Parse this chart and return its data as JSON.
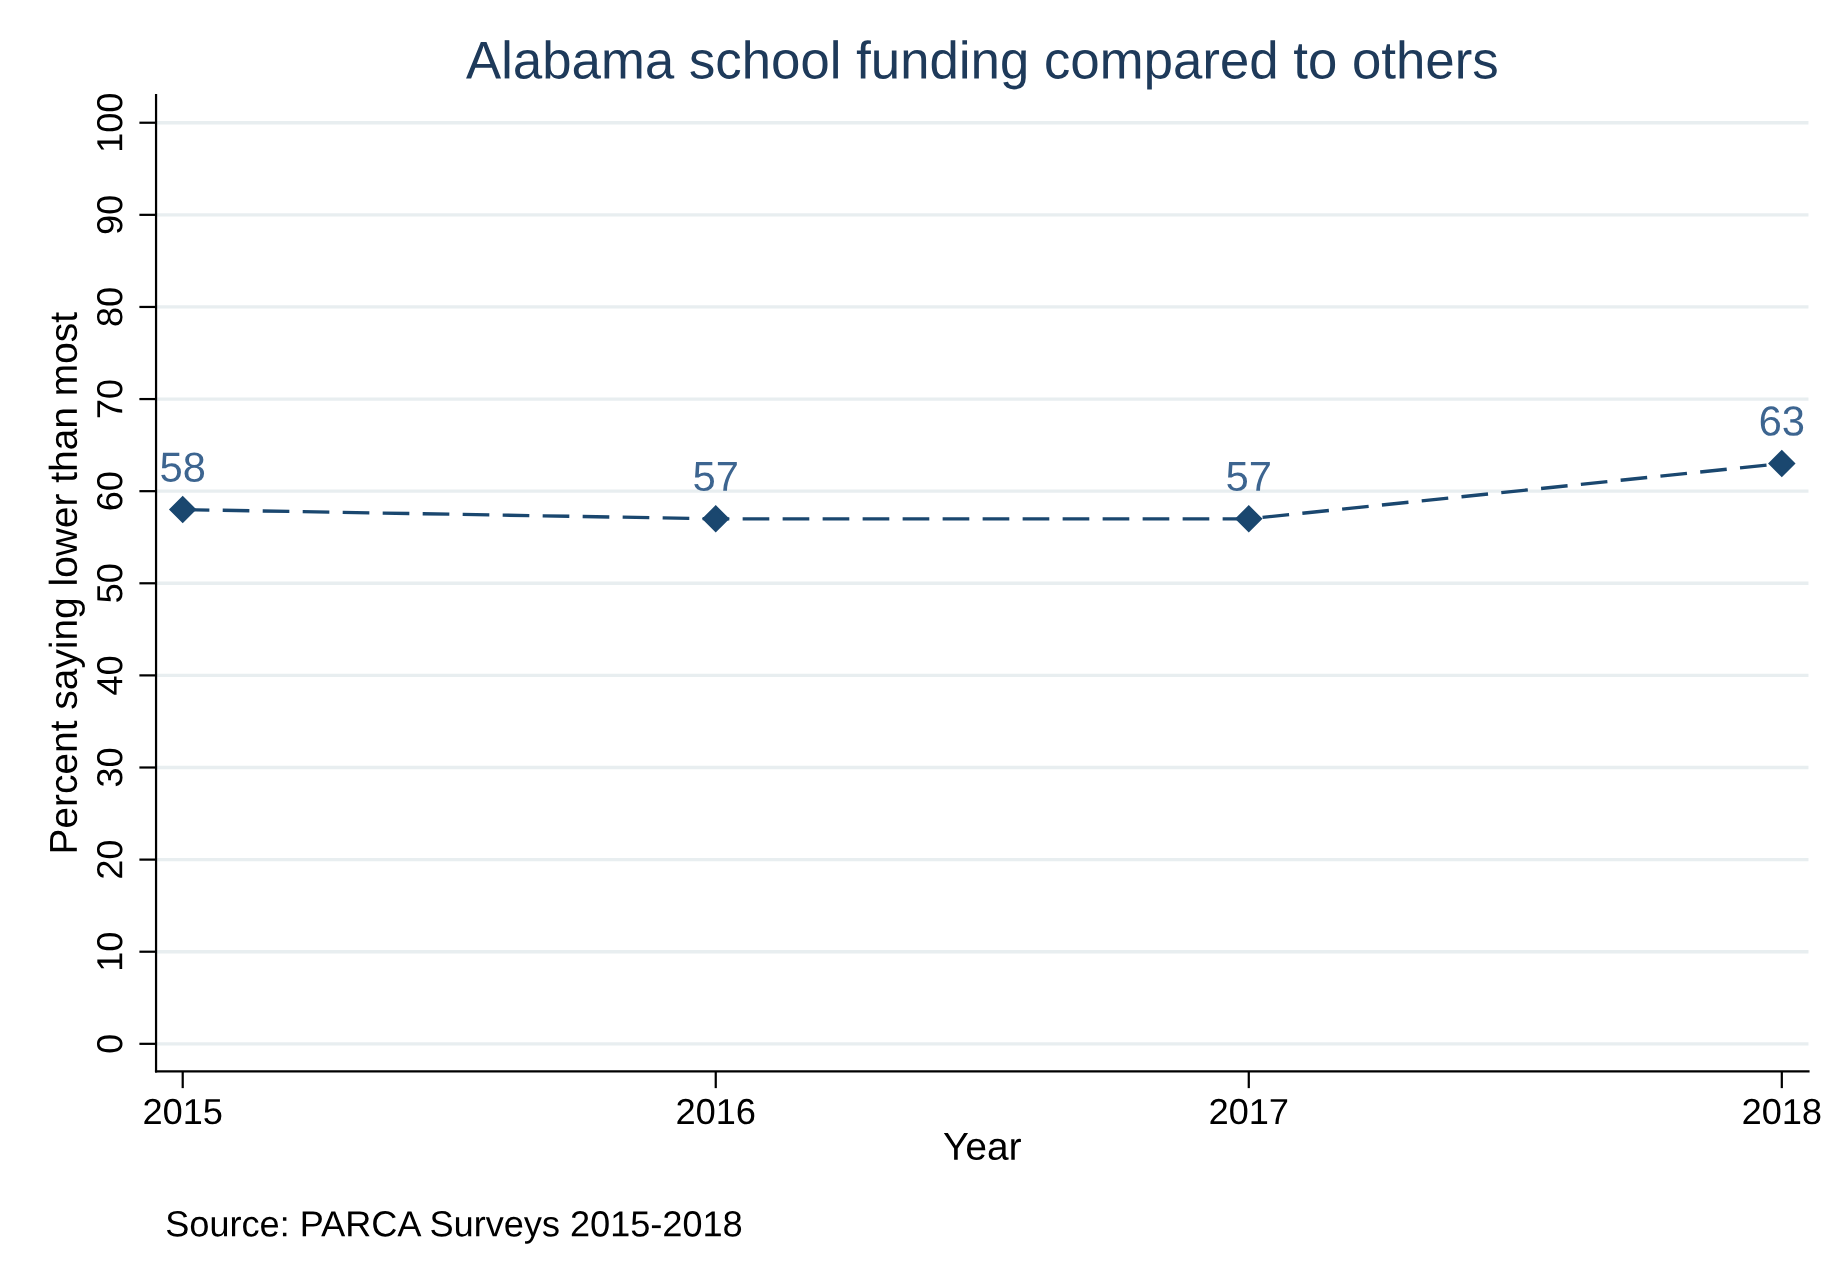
{
  "chart_data": {
    "type": "line",
    "title": "Alabama school funding compared to others",
    "xlabel": "Year",
    "ylabel": "Percent saying lower than most",
    "x": [
      2015,
      2016,
      2017,
      2018
    ],
    "series": [
      {
        "color": "#1a476f",
        "values": [
          58,
          57,
          57,
          63
        ]
      }
    ],
    "data_labels": true,
    "marker": "diamond",
    "line_style": "dashed",
    "grid": "y",
    "legend": false,
    "xlim": [
      2014.95,
      2018.05
    ],
    "xticks": [
      2015,
      2016,
      2017,
      2018
    ],
    "ylim": [
      -3,
      103
    ],
    "yticks": [
      0,
      10,
      20,
      30,
      40,
      50,
      60,
      70,
      80,
      90,
      100
    ],
    "annotations": [
      "Source: PARCA Surveys 2015-2018"
    ]
  }
}
